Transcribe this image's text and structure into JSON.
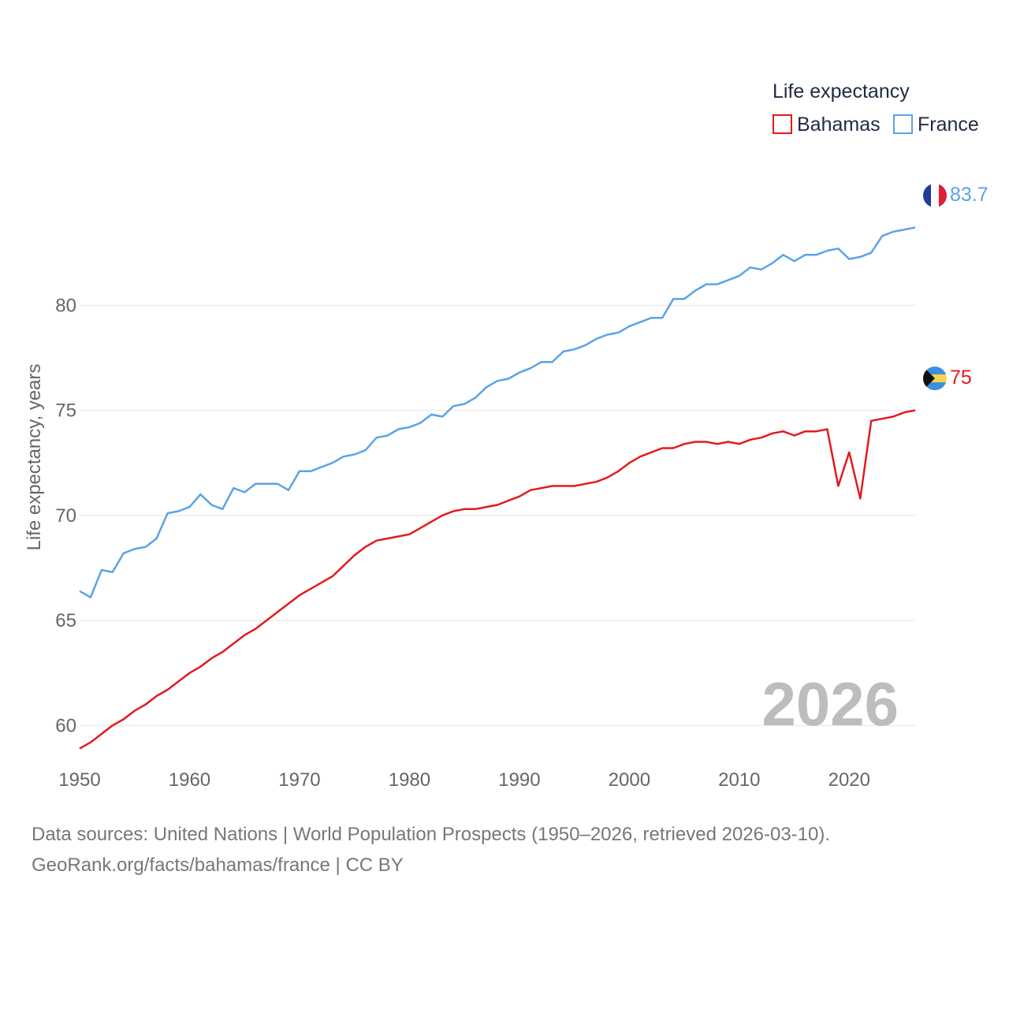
{
  "chart_data": {
    "type": "line",
    "title": "",
    "xlabel": "",
    "ylabel": "Life expectancy, years",
    "xlim": [
      1950,
      2026
    ],
    "ylim": [
      58.7,
      86.5
    ],
    "yticks": [
      60,
      65,
      70,
      75,
      80
    ],
    "xticks": [
      1950,
      1960,
      1970,
      1980,
      1990,
      2000,
      2010,
      2020
    ],
    "grid": true,
    "legend": {
      "title": "Life expectancy",
      "position": "top-right"
    },
    "current_year_label": "2026",
    "x": [
      1950,
      1951,
      1952,
      1953,
      1954,
      1955,
      1956,
      1957,
      1958,
      1959,
      1960,
      1961,
      1962,
      1963,
      1964,
      1965,
      1966,
      1967,
      1968,
      1969,
      1970,
      1971,
      1972,
      1973,
      1974,
      1975,
      1976,
      1977,
      1978,
      1979,
      1980,
      1981,
      1982,
      1983,
      1984,
      1985,
      1986,
      1987,
      1988,
      1989,
      1990,
      1991,
      1992,
      1993,
      1994,
      1995,
      1996,
      1997,
      1998,
      1999,
      2000,
      2001,
      2002,
      2003,
      2004,
      2005,
      2006,
      2007,
      2008,
      2009,
      2010,
      2011,
      2012,
      2013,
      2014,
      2015,
      2016,
      2017,
      2018,
      2019,
      2020,
      2021,
      2022,
      2023,
      2024,
      2025,
      2026
    ],
    "series": [
      {
        "name": "Bahamas",
        "color": "#e31a1c",
        "end_label": "75",
        "flag": "bahamas-flag-icon",
        "values": [
          58.9,
          59.2,
          59.6,
          60.0,
          60.3,
          60.7,
          61.0,
          61.4,
          61.7,
          62.1,
          62.5,
          62.8,
          63.2,
          63.5,
          63.9,
          64.3,
          64.6,
          65.0,
          65.4,
          65.8,
          66.2,
          66.5,
          66.8,
          67.1,
          67.6,
          68.1,
          68.5,
          68.8,
          68.9,
          69.0,
          69.1,
          69.4,
          69.7,
          70.0,
          70.2,
          70.3,
          70.3,
          70.4,
          70.5,
          70.7,
          70.9,
          71.2,
          71.3,
          71.4,
          71.4,
          71.4,
          71.5,
          71.6,
          71.8,
          72.1,
          72.5,
          72.8,
          73.0,
          73.2,
          73.2,
          73.4,
          73.5,
          73.5,
          73.4,
          73.5,
          73.4,
          73.6,
          73.7,
          73.9,
          74.0,
          73.8,
          74.0,
          74.0,
          74.1,
          71.4,
          73.0,
          70.8,
          74.5,
          74.6,
          74.7,
          74.9,
          75.0
        ]
      },
      {
        "name": "France",
        "color": "#5ba3e6",
        "end_label": "83.7",
        "flag": "france-flag-icon",
        "values": [
          66.4,
          66.1,
          67.4,
          67.3,
          68.2,
          68.4,
          68.5,
          68.9,
          70.1,
          70.2,
          70.4,
          71.0,
          70.5,
          70.3,
          71.3,
          71.1,
          71.5,
          71.5,
          71.5,
          71.2,
          72.1,
          72.1,
          72.3,
          72.5,
          72.8,
          72.9,
          73.1,
          73.7,
          73.8,
          74.1,
          74.2,
          74.4,
          74.8,
          74.7,
          75.2,
          75.3,
          75.6,
          76.1,
          76.4,
          76.5,
          76.8,
          77.0,
          77.3,
          77.3,
          77.8,
          77.9,
          78.1,
          78.4,
          78.6,
          78.7,
          79.0,
          79.2,
          79.4,
          79.4,
          80.3,
          80.3,
          80.7,
          81.0,
          81.0,
          81.2,
          81.4,
          81.8,
          81.7,
          82.0,
          82.4,
          82.1,
          82.4,
          82.4,
          82.6,
          82.7,
          82.2,
          82.3,
          82.5,
          83.3,
          83.5,
          83.6,
          83.7
        ]
      }
    ]
  },
  "footer": {
    "sources": "Data sources: United Nations | World Population Prospects (1950–2026, retrieved 2026-03-10).",
    "credit": "GeoRank.org/facts/bahamas/france | CC BY"
  }
}
